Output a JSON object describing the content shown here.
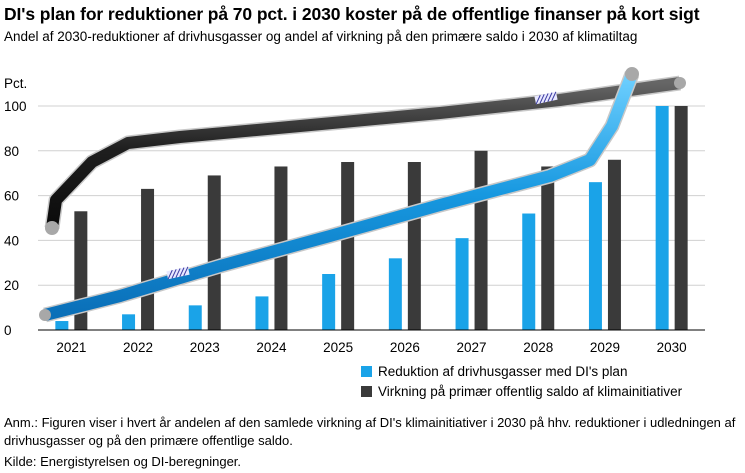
{
  "title": "DI's plan for reduktioner på 70 pct. i 2030 koster på de offentlige finanser på kort sigt",
  "subtitle": "Andel af 2030-reduktioner af drivhusgasser og andel af virkning på den primære saldo i 2030 af klimatiltag",
  "note": "Anm.: Figuren viser i hvert år andelen af den samlede virkning af DI's klimainitiativer i 2030 på hhv. reduktioner i udledningen af drivhusgasser og på den primære offentlige saldo.",
  "source": "Kilde: Energistyrelsen og DI-beregninger.",
  "chart_data": {
    "type": "bar",
    "ylabel": "Pct.",
    "ylim": [
      0,
      100
    ],
    "yticks": [
      0,
      20,
      40,
      60,
      80,
      100
    ],
    "categories": [
      "2021",
      "2022",
      "2023",
      "2024",
      "2025",
      "2026",
      "2027",
      "2028",
      "2029",
      "2030"
    ],
    "series": [
      {
        "name": "Reduktion af drivhusgasser med DI's plan",
        "color": "#1aa3e8",
        "values": [
          4,
          7,
          11,
          15,
          25,
          32,
          41,
          52,
          66,
          100
        ]
      },
      {
        "name": "Virkning på primær offentlig saldo af klimainitiativer",
        "color": "#3a3a3a",
        "values": [
          53,
          63,
          69,
          73,
          75,
          75,
          80,
          73,
          76,
          100
        ]
      }
    ],
    "grid": true,
    "legend_position": "bottom-right"
  }
}
